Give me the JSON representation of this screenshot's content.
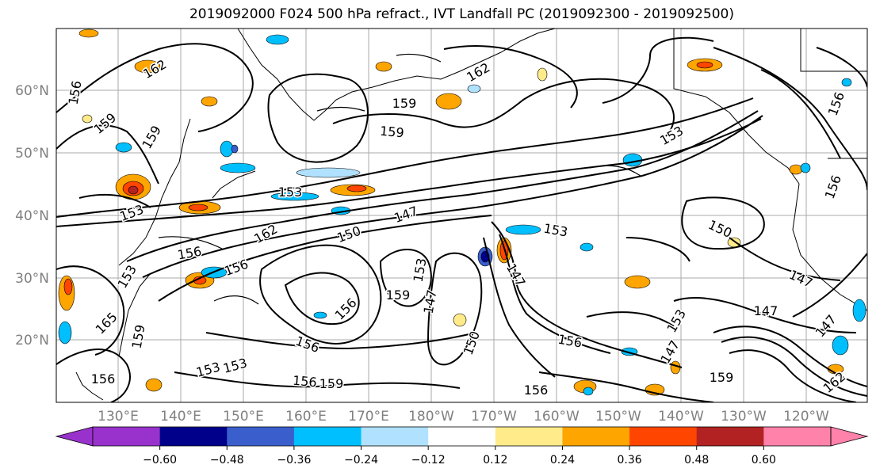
{
  "title": "2019092000 F024 500 hPa refract., IVT Landfall PC (2019092300 - 2019092500)",
  "map": {
    "lon_labels": [
      "130°E",
      "140°E",
      "150°E",
      "160°E",
      "170°E",
      "180°W",
      "170°W",
      "160°W",
      "150°W",
      "140°W",
      "130°W",
      "120°W"
    ],
    "lat_labels": [
      "20°N",
      "30°N",
      "40°N",
      "50°N",
      "60°N"
    ],
    "contour_labels": [
      "162",
      "156",
      "159",
      "159",
      "162",
      "153",
      "159",
      "159",
      "153",
      "153",
      "147",
      "150",
      "162",
      "153",
      "156",
      "156",
      "153",
      "147",
      "153",
      "147",
      "150",
      "156",
      "165",
      "159",
      "156",
      "153",
      "153",
      "156",
      "159",
      "156",
      "147",
      "156",
      "156",
      "159",
      "150",
      "153",
      "147",
      "147",
      "159",
      "156",
      "147",
      "162",
      "156"
    ]
  },
  "colorbar": {
    "ticks": [
      "−0.60",
      "−0.48",
      "−0.36",
      "−0.24",
      "−0.12",
      "0.12",
      "0.24",
      "0.36",
      "0.48",
      "0.60"
    ],
    "colors": [
      "#9932cc",
      "#00008b",
      "#3a5fcd",
      "#00bfff",
      "#b0e2ff",
      "#ffffff",
      "#ffeb8a",
      "#ffa500",
      "#ff4500",
      "#b22222",
      "#ff82ab"
    ]
  }
}
